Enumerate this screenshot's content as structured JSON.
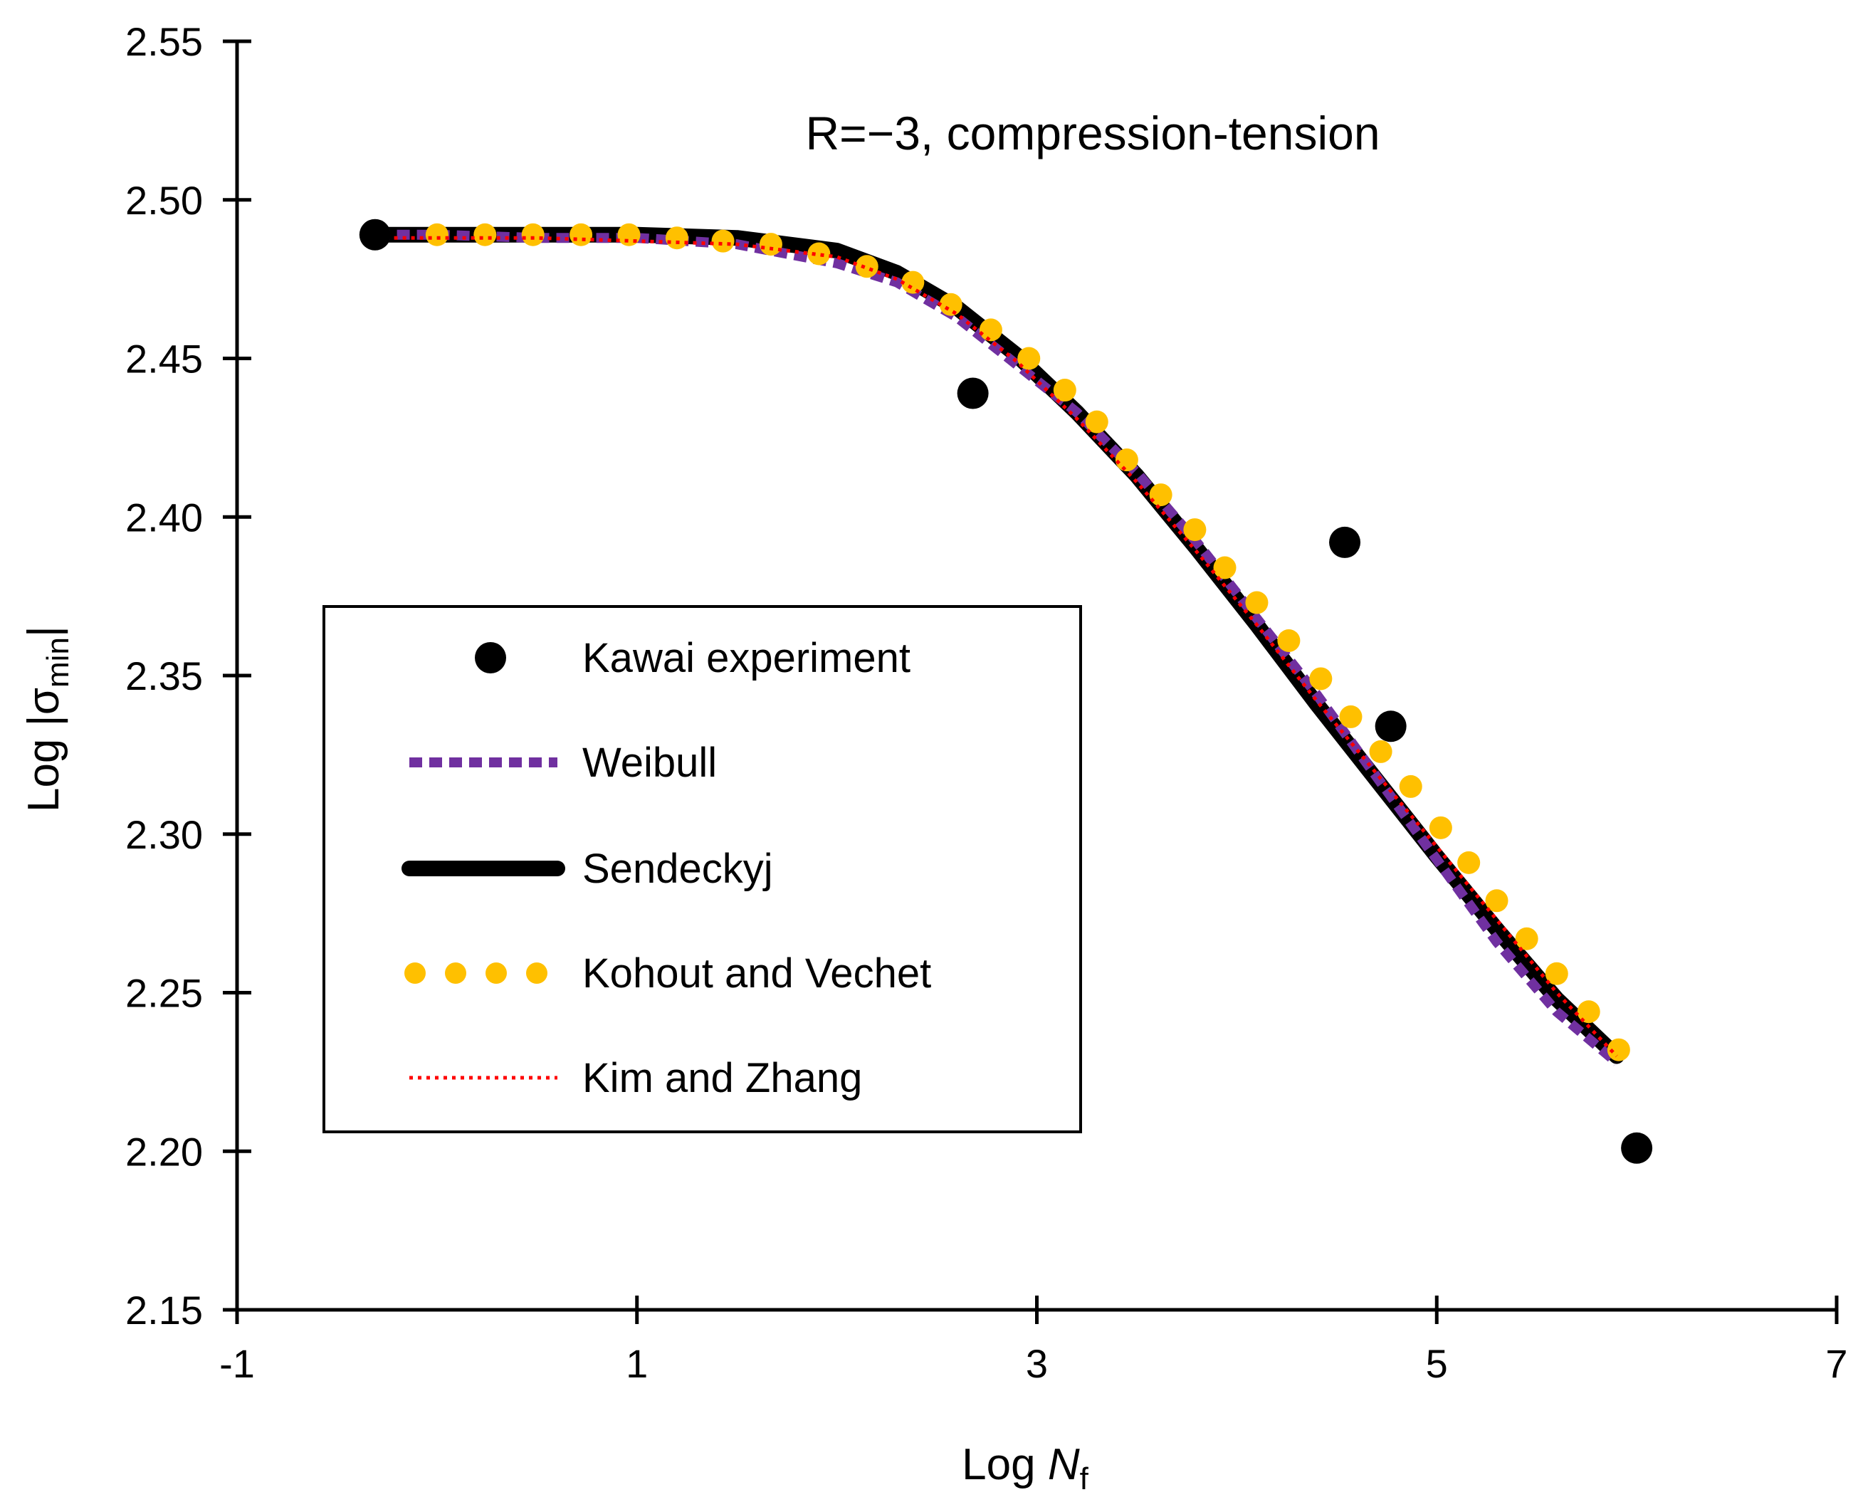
{
  "chart_data": {
    "type": "scatter+line",
    "annotation": "R=−3, compression-tension",
    "xlabel": {
      "prefix": "Log ",
      "symbol": "N",
      "sub": "f"
    },
    "ylabel": {
      "prefix": "Log |σ",
      "sub": "min",
      "suffix": "|"
    },
    "xlim": [
      -1,
      7
    ],
    "ylim": [
      2.15,
      2.55
    ],
    "x_ticks": [
      -1,
      1,
      3,
      5,
      7
    ],
    "x_tick_labels": [
      "-1",
      "1",
      "3",
      "5",
      "7"
    ],
    "y_ticks": [
      2.15,
      2.2,
      2.25,
      2.3,
      2.35,
      2.4,
      2.45,
      2.5,
      2.55
    ],
    "y_tick_labels": [
      "2.15",
      "2.20",
      "2.25",
      "2.30",
      "2.35",
      "2.40",
      "2.45",
      "2.50",
      "2.55"
    ],
    "legend_position": "center-left",
    "series": [
      {
        "name": "Kawai experiment",
        "kind": "markers",
        "color": "#000000",
        "x": [
          -0.31,
          2.68,
          4.54,
          4.77,
          6.0
        ],
        "y": [
          2.489,
          2.439,
          2.392,
          2.334,
          2.201
        ]
      },
      {
        "name": "Weibull",
        "kind": "dashed-line",
        "color": "#7030A0",
        "x": [
          -0.3,
          0,
          0.5,
          1,
          1.5,
          2,
          2.3,
          2.6,
          2.9,
          3.2,
          3.5,
          3.8,
          4.1,
          4.4,
          4.7,
          5.0,
          5.3,
          5.6,
          5.9
        ],
        "y": [
          2.489,
          2.489,
          2.488,
          2.488,
          2.486,
          2.48,
          2.474,
          2.463,
          2.448,
          2.433,
          2.414,
          2.392,
          2.368,
          2.344,
          2.318,
          2.292,
          2.266,
          2.244,
          2.228
        ]
      },
      {
        "name": "Sendeckyj",
        "kind": "solid-line",
        "color": "#000000",
        "x": [
          -0.3,
          0,
          0.5,
          1,
          1.5,
          2,
          2.3,
          2.6,
          2.9,
          3.2,
          3.5,
          3.8,
          4.1,
          4.4,
          4.7,
          5.0,
          5.3,
          5.6,
          5.9
        ],
        "y": [
          2.489,
          2.489,
          2.489,
          2.489,
          2.488,
          2.484,
          2.477,
          2.466,
          2.451,
          2.433,
          2.413,
          2.39,
          2.366,
          2.341,
          2.317,
          2.293,
          2.27,
          2.248,
          2.23
        ]
      },
      {
        "name": "Kohout and Vechet",
        "kind": "dotted-markers",
        "color": "#FFC000",
        "x": [
          0,
          0.24,
          0.48,
          0.72,
          0.96,
          1.2,
          1.43,
          1.67,
          1.91,
          2.15,
          2.38,
          2.57,
          2.77,
          2.96,
          3.14,
          3.3,
          3.45,
          3.62,
          3.79,
          3.94,
          4.1,
          4.26,
          4.42,
          4.57,
          4.72,
          4.87,
          5.02,
          5.16,
          5.3,
          5.45,
          5.6,
          5.76,
          5.91
        ],
        "y": [
          2.489,
          2.489,
          2.489,
          2.489,
          2.489,
          2.488,
          2.487,
          2.486,
          2.483,
          2.479,
          2.474,
          2.467,
          2.459,
          2.45,
          2.44,
          2.43,
          2.418,
          2.407,
          2.396,
          2.384,
          2.373,
          2.361,
          2.349,
          2.337,
          2.326,
          2.315,
          2.302,
          2.291,
          2.279,
          2.267,
          2.256,
          2.244,
          2.232
        ]
      },
      {
        "name": "Kim and Zhang",
        "kind": "dotted-line",
        "color": "#FF0000",
        "x": [
          -0.3,
          0,
          0.5,
          1,
          1.5,
          2,
          2.3,
          2.6,
          2.9,
          3.2,
          3.5,
          3.8,
          4.1,
          4.4,
          4.7,
          5.0,
          5.3,
          5.6,
          5.9
        ],
        "y": [
          2.488,
          2.488,
          2.488,
          2.487,
          2.486,
          2.482,
          2.475,
          2.464,
          2.449,
          2.431,
          2.411,
          2.389,
          2.366,
          2.342,
          2.319,
          2.296,
          2.273,
          2.25,
          2.23
        ]
      }
    ]
  }
}
